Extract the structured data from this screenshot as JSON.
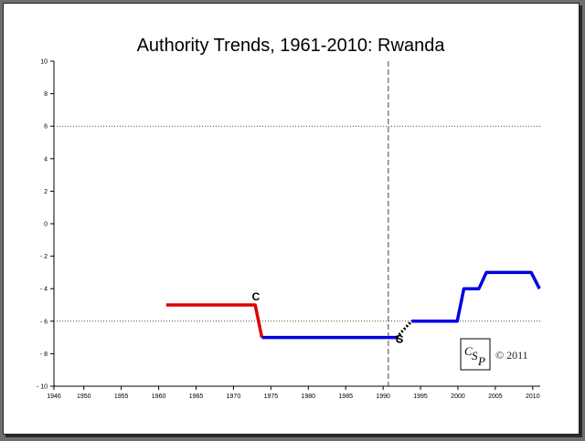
{
  "chart_data": {
    "type": "line",
    "title": "Authority Trends, 1961-2010: Rwanda",
    "xlabel": "",
    "ylabel": "",
    "xlim": [
      1946,
      2011
    ],
    "ylim": [
      -10,
      10
    ],
    "xticks": [
      1946,
      1950,
      1955,
      1960,
      1965,
      1970,
      1975,
      1980,
      1985,
      1990,
      1995,
      2000,
      2005,
      2010
    ],
    "yticks": [
      10,
      8,
      6,
      4,
      2,
      0,
      -2,
      -4,
      -6,
      -8,
      -10
    ],
    "x_tick_labels": [
      "1946",
      "1950",
      "1955",
      "1960",
      "1965",
      "1970",
      "1975",
      "1980",
      "1985",
      "1990",
      "1995",
      "2000",
      "2005",
      "2010"
    ],
    "y_tick_labels": [
      "10",
      "8",
      "6",
      "4",
      "2",
      "0",
      "- 2",
      "- 4",
      "- 6",
      "- 8",
      "- 10"
    ],
    "reference_lines_y": [
      6,
      -6
    ],
    "reference_line_x": 1990.7,
    "colors": {
      "red": "#e00000",
      "blue": "#0000e0",
      "black": "#000000"
    },
    "segments": [
      {
        "color": "red",
        "points": [
          [
            1961,
            -5
          ],
          [
            1972.9,
            -5
          ],
          [
            1973.8,
            -7
          ]
        ]
      },
      {
        "color": "blue",
        "points": [
          [
            1973.8,
            -7
          ],
          [
            1991.8,
            -7
          ]
        ]
      },
      {
        "color": "black",
        "dashed": true,
        "points": [
          [
            1991.8,
            -7
          ],
          [
            1993.8,
            -6
          ]
        ]
      },
      {
        "color": "blue",
        "points": [
          [
            1993.8,
            -6
          ],
          [
            1999.9,
            -6
          ],
          [
            2000.8,
            -4
          ],
          [
            2002.8,
            -4
          ],
          [
            2003.8,
            -3
          ],
          [
            2009.8,
            -3
          ],
          [
            2010.9,
            -4
          ]
        ]
      }
    ],
    "annotations": [
      {
        "text": "C",
        "x": 1973.0,
        "y": -4.5
      },
      {
        "text": "C",
        "x": 1992.2,
        "y": -7.1
      },
      {
        "text": "S",
        "x": 1992.2,
        "y": -7.1
      }
    ],
    "grid": false
  },
  "watermark": {
    "logo_text": "CSP",
    "copyright": "© 2011"
  }
}
